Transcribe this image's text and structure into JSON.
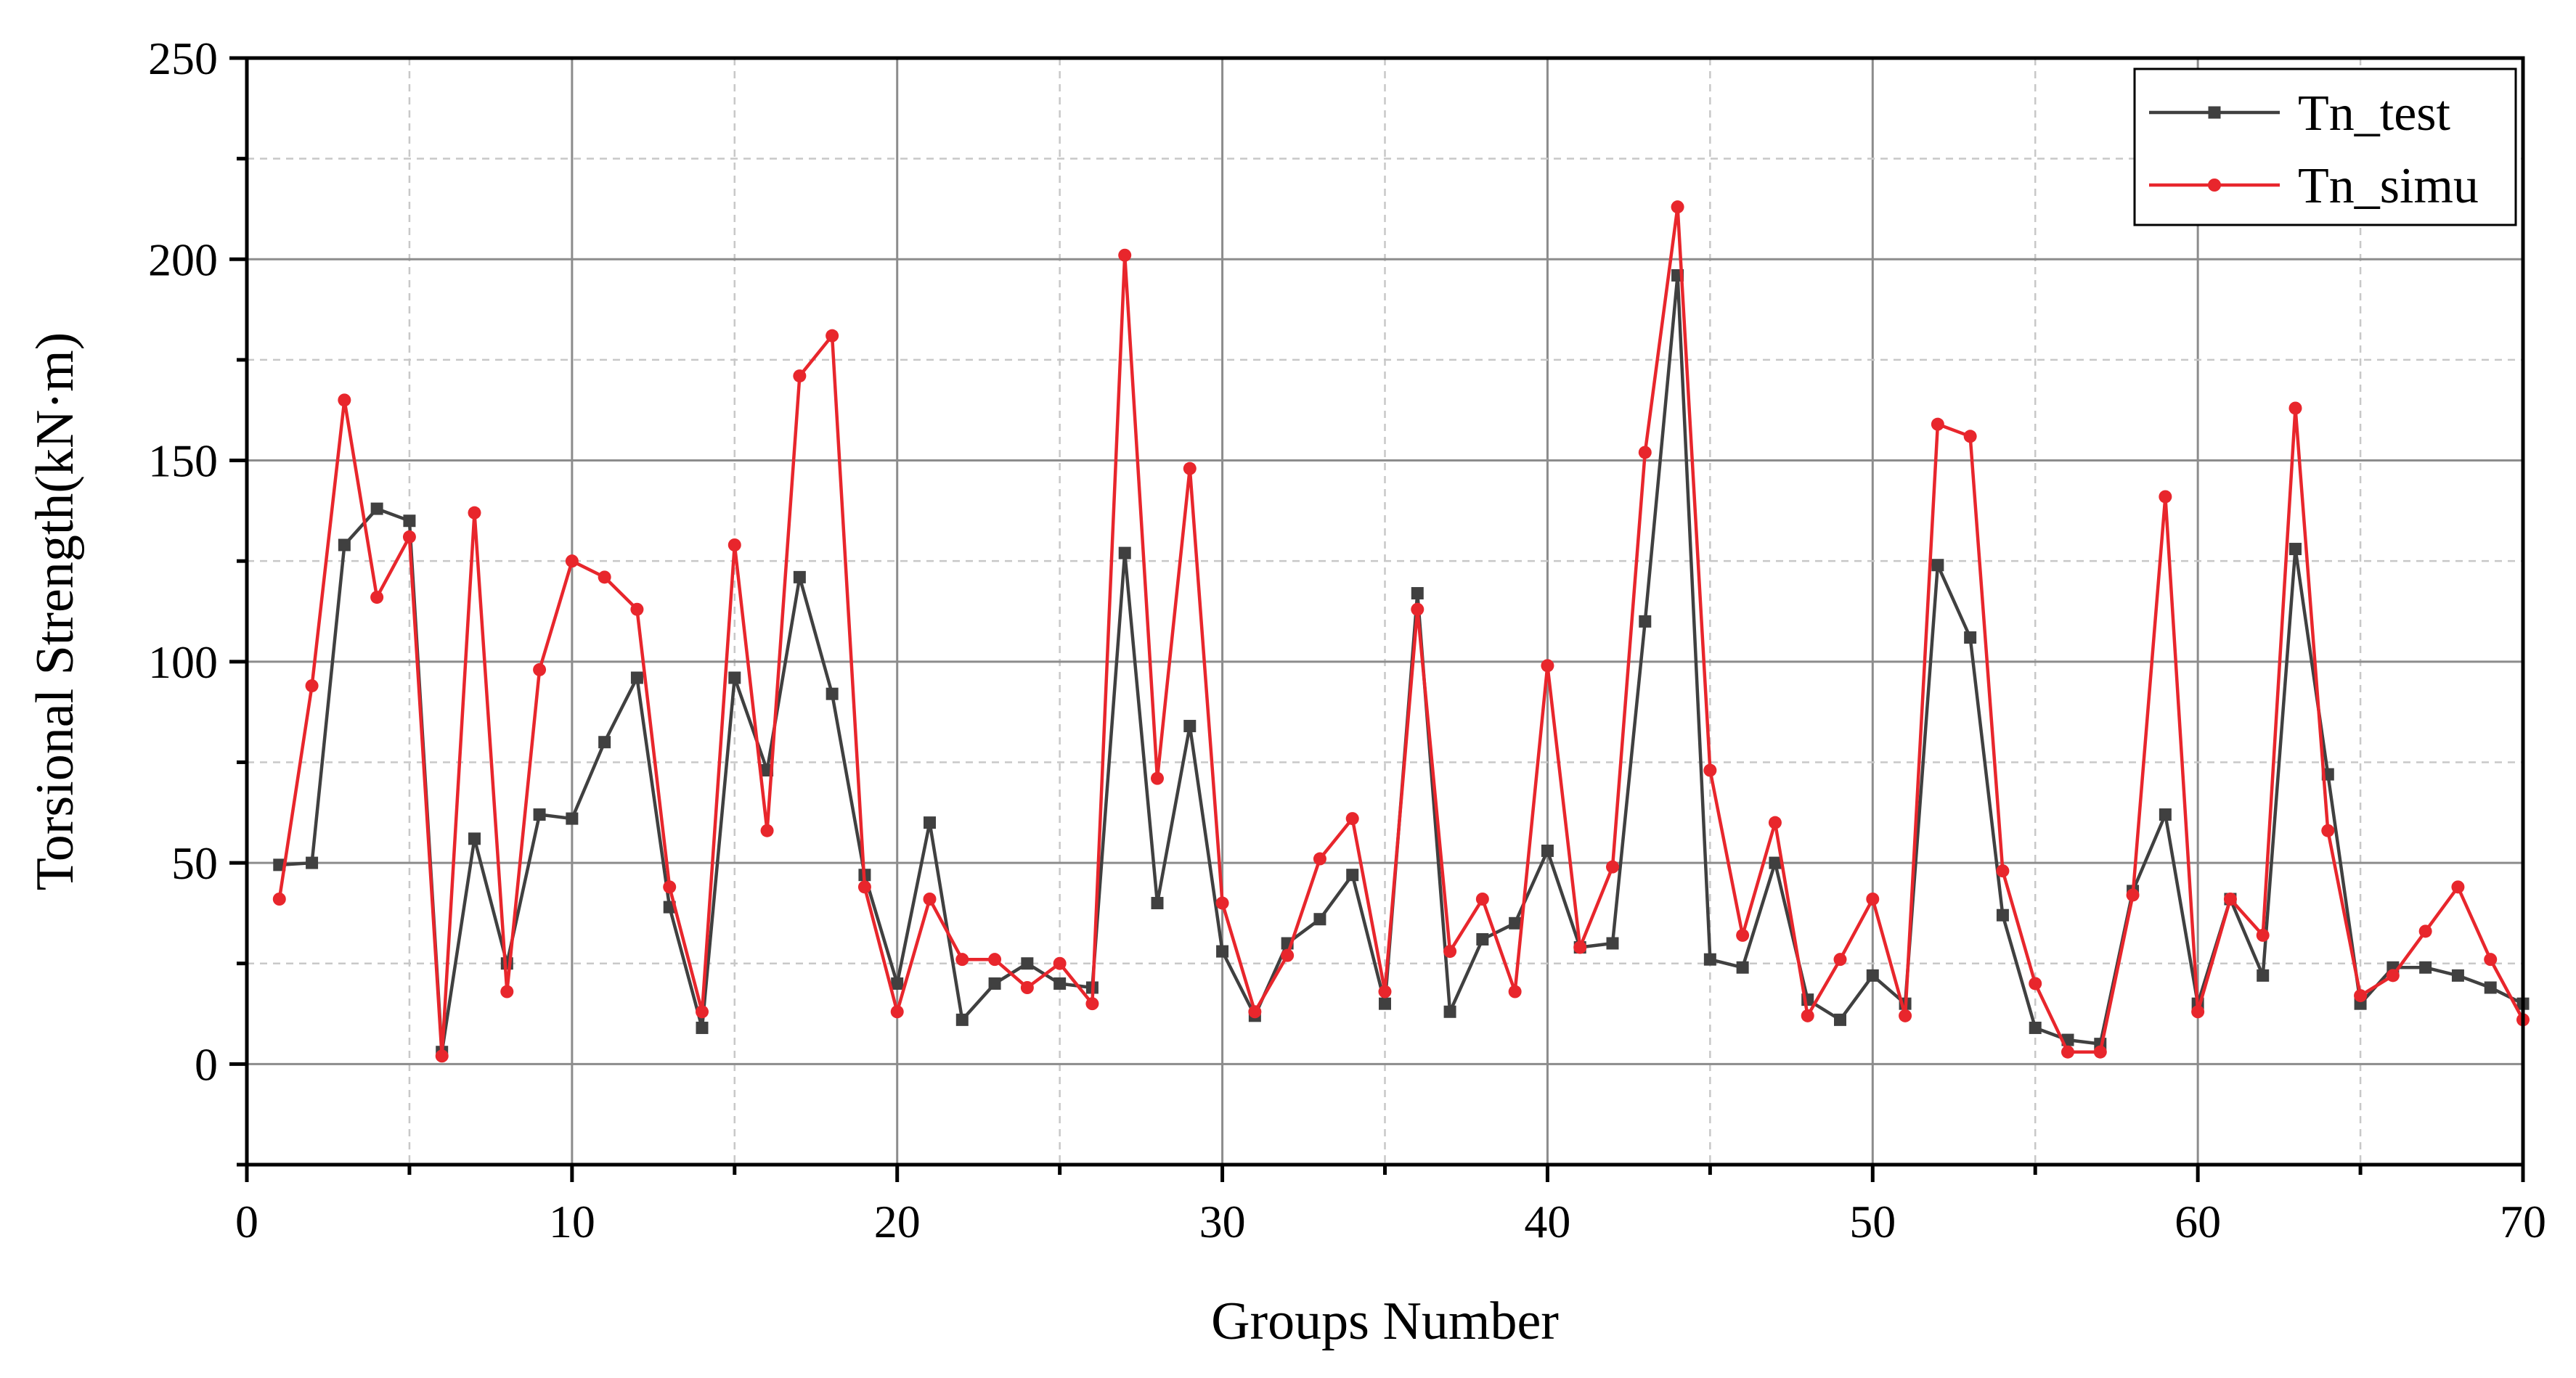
{
  "chart_data": {
    "type": "line",
    "xlabel": "Groups Number",
    "ylabel": "Torsional Strength(kN·m)",
    "xlim": [
      0,
      70
    ],
    "ylim": [
      -25,
      250
    ],
    "xticks": [
      "0",
      "10",
      "20",
      "30",
      "40",
      "50",
      "60",
      "70"
    ],
    "yticks": [
      "0",
      "50",
      "100",
      "150",
      "200",
      "250"
    ],
    "grid": true,
    "legend_position": "top-right",
    "x": [
      1,
      2,
      3,
      4,
      5,
      6,
      7,
      8,
      9,
      10,
      11,
      12,
      13,
      14,
      15,
      16,
      17,
      18,
      19,
      20,
      21,
      22,
      23,
      24,
      25,
      26,
      27,
      28,
      29,
      30,
      31,
      32,
      33,
      34,
      35,
      36,
      37,
      38,
      39,
      40,
      41,
      42,
      43,
      44,
      45,
      46,
      47,
      48,
      49,
      50,
      51,
      52,
      53,
      54,
      55,
      56,
      57,
      58,
      59,
      60,
      61,
      62,
      63,
      64,
      65,
      66,
      67,
      68,
      69,
      70
    ],
    "series": [
      {
        "name": "Tn_test",
        "color": "#404040",
        "marker": "square",
        "values": [
          49.5,
          50,
          129,
          138,
          135,
          3,
          56,
          25,
          62,
          61,
          80,
          96,
          39,
          9,
          96,
          73,
          121,
          92,
          47,
          20,
          60,
          11,
          20,
          25,
          20,
          19,
          127,
          40,
          84,
          28,
          12,
          30,
          36,
          47,
          15,
          117,
          13,
          31,
          35,
          53,
          29,
          30,
          110,
          196,
          26,
          24,
          50,
          16,
          11,
          22,
          15,
          124,
          106,
          37,
          9,
          6,
          5,
          43,
          62,
          15,
          41,
          22,
          128,
          72,
          15,
          24,
          24,
          22,
          19,
          15
        ]
      },
      {
        "name": "Tn_simu",
        "color": "#e8262c",
        "marker": "circle",
        "values": [
          41,
          94,
          165,
          116,
          131,
          2,
          137,
          18,
          98,
          125,
          121,
          113,
          44,
          13,
          129,
          58,
          171,
          181,
          44,
          13,
          41,
          26,
          26,
          19,
          25,
          15,
          201,
          71,
          148,
          40,
          13,
          27,
          51,
          61,
          18,
          113,
          28,
          41,
          18,
          99,
          29,
          49,
          152,
          213,
          73,
          32,
          60,
          12,
          26,
          41,
          12,
          159,
          156,
          48,
          20,
          3,
          3,
          42,
          141,
          13,
          41,
          32,
          163,
          58,
          17,
          22,
          33,
          44,
          26,
          11
        ]
      }
    ]
  }
}
